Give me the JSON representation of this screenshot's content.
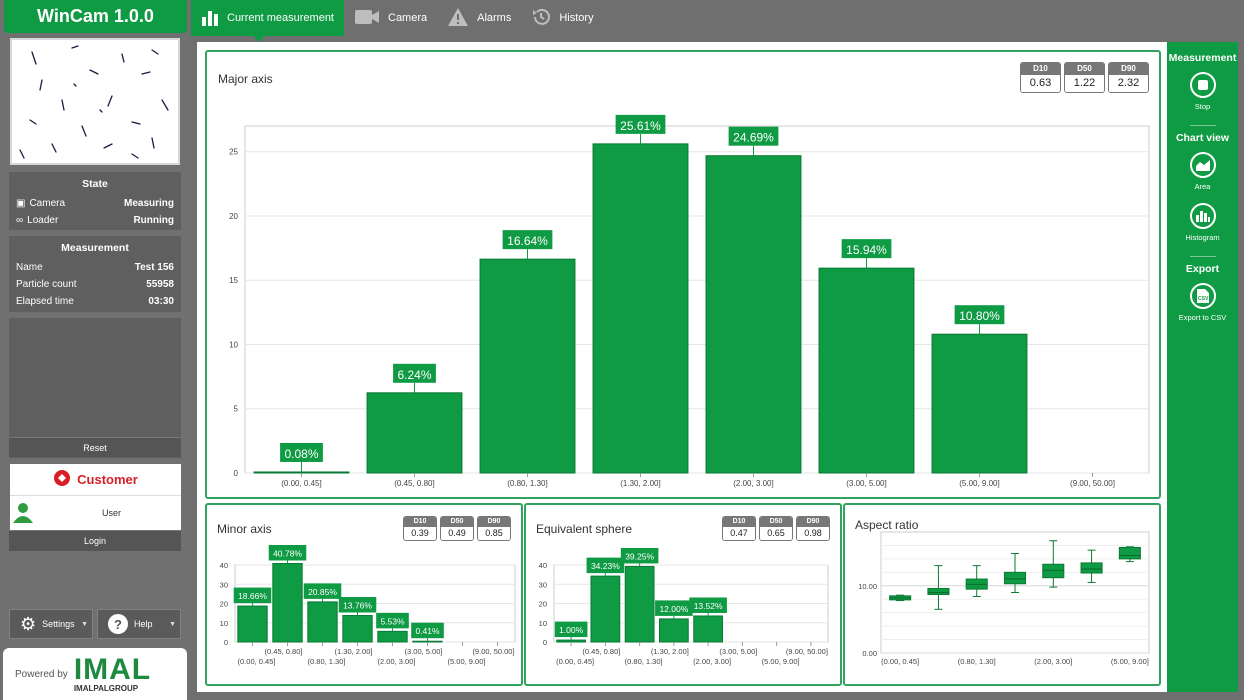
{
  "app": {
    "title": "WinCam 1.0.0"
  },
  "tabs": [
    {
      "label": "Current measurement",
      "icon": "bar-chart-icon",
      "active": true
    },
    {
      "label": "Camera",
      "icon": "camera-icon"
    },
    {
      "label": "Alarms",
      "icon": "warning-icon"
    },
    {
      "label": "History",
      "icon": "history-icon"
    }
  ],
  "state": {
    "title": "State",
    "rows": [
      {
        "label": "Camera",
        "value": "Measuring",
        "icon": "camera-icon"
      },
      {
        "label": "Loader",
        "value": "Running",
        "icon": "loader-icon"
      }
    ]
  },
  "measurement": {
    "title": "Measurement",
    "rows": [
      {
        "label": "Name",
        "value": "Test 156"
      },
      {
        "label": "Particle count",
        "value": "55958"
      },
      {
        "label": "Elapsed time",
        "value": "03:30"
      }
    ]
  },
  "buttons": {
    "reset": "Reset",
    "login": "Login",
    "settings": "Settings",
    "help": "Help"
  },
  "customer": {
    "title": "Customer",
    "user": "User"
  },
  "footer": {
    "powered_by": "Powered by",
    "brand": "IMAL",
    "group": "IMALPALGROUP"
  },
  "rightbar": {
    "measurement_title": "Measurement",
    "stop": "Stop",
    "chartview_title": "Chart view",
    "area": "Area",
    "histogram": "Histogram",
    "export_title": "Export",
    "export_csv": "Export to CSV"
  },
  "colors": {
    "accent": "#0f9a44",
    "bar": "#0f9a44",
    "bar_border": "#0a7a34"
  },
  "chart_data": [
    {
      "id": "major",
      "type": "bar",
      "title": "Major axis",
      "stats": [
        {
          "label": "D10",
          "value": "0.63"
        },
        {
          "label": "D50",
          "value": "1.22"
        },
        {
          "label": "D90",
          "value": "2.32"
        }
      ],
      "categories": [
        "(0.00, 0.45]",
        "(0.45, 0.80]",
        "(0.80, 1.30]",
        "(1.30, 2.00]",
        "(2.00, 3.00]",
        "(3.00, 5.00]",
        "(5.00, 9.00]",
        "(9.00, 50.00]"
      ],
      "values": [
        0.08,
        6.24,
        16.64,
        25.61,
        24.69,
        15.94,
        10.8,
        0
      ],
      "labels": [
        "0.08%",
        "6.24%",
        "16.64%",
        "25.61%",
        "24.69%",
        "15.94%",
        "10.80%",
        ""
      ],
      "yticks": [
        0,
        5,
        10,
        15,
        20,
        25
      ],
      "ylim": [
        0,
        27
      ]
    },
    {
      "id": "minor",
      "type": "bar",
      "title": "Minor axis",
      "stats": [
        {
          "label": "D10",
          "value": "0.39"
        },
        {
          "label": "D50",
          "value": "0.49"
        },
        {
          "label": "D90",
          "value": "0.85"
        }
      ],
      "categories": [
        "(0.00, 0.45]",
        "(0.45, 0.80]",
        "(0.80, 1.30]",
        "(1.30, 2.00]",
        "(2.00, 3.00]",
        "(3.00, 5.00]",
        "(5.00, 9.00]",
        "(9.00, 50.00]"
      ],
      "values": [
        18.66,
        40.78,
        20.85,
        13.76,
        5.53,
        0.41,
        0,
        0
      ],
      "labels": [
        "18.66%",
        "40.78%",
        "20.85%",
        "13.76%",
        "5.53%",
        "0.41%",
        "",
        ""
      ],
      "yticks": [
        0,
        10,
        20,
        30,
        40
      ],
      "ylim": [
        0,
        40
      ]
    },
    {
      "id": "sphere",
      "type": "bar",
      "title": "Equivalent sphere",
      "stats": [
        {
          "label": "D10",
          "value": "0.47"
        },
        {
          "label": "D50",
          "value": "0.65"
        },
        {
          "label": "D90",
          "value": "0.98"
        }
      ],
      "categories": [
        "(0.00, 0.45]",
        "(0.45, 0.80]",
        "(0.80, 1.30]",
        "(1.30, 2.00]",
        "(2.00, 3.00]",
        "(3.00, 5.00]",
        "(5.00, 9.00]",
        "(9.00, 50.00]"
      ],
      "values": [
        1.0,
        34.23,
        39.25,
        12.0,
        13.52,
        0,
        0,
        0
      ],
      "labels": [
        "1.00%",
        "34.23%",
        "39.25%",
        "12.00%",
        "13.52%",
        "",
        "",
        ""
      ],
      "yticks": [
        0,
        10,
        20,
        30,
        40
      ],
      "ylim": [
        0,
        40
      ]
    },
    {
      "id": "aspect",
      "type": "box",
      "title": "Aspect ratio",
      "categories": [
        "(0.00, 0.45]",
        "(0.80, 1.30]",
        "(2.00, 3.00]",
        "(5.00, 9.00]"
      ],
      "yticks": [
        0,
        10
      ],
      "ytick_labels": [
        "0.00",
        "10.00"
      ],
      "ylim": [
        0,
        18
      ],
      "boxes": [
        {
          "min": 7.8,
          "q1": 7.9,
          "median": 8.2,
          "q3": 8.5,
          "max": 8.6
        },
        {
          "min": 6.5,
          "q1": 8.7,
          "median": 9.0,
          "q3": 9.6,
          "max": 13.0
        },
        {
          "min": 8.4,
          "q1": 9.5,
          "median": 10.2,
          "q3": 11.0,
          "max": 13.0
        },
        {
          "min": 9.0,
          "q1": 10.3,
          "median": 11.0,
          "q3": 12.0,
          "max": 14.8
        },
        {
          "min": 9.8,
          "q1": 11.2,
          "median": 12.3,
          "q3": 13.2,
          "max": 16.7
        },
        {
          "min": 10.5,
          "q1": 11.9,
          "median": 12.5,
          "q3": 13.4,
          "max": 15.3
        },
        {
          "min": 13.6,
          "q1": 14.0,
          "median": 14.5,
          "q3": 15.7,
          "max": 15.8
        }
      ]
    }
  ]
}
